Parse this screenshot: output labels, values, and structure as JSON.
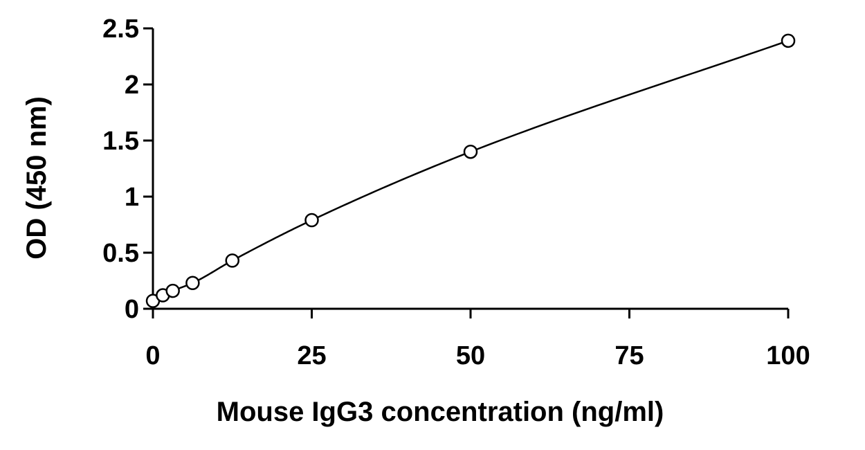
{
  "chart_data": {
    "type": "scatter",
    "title": "",
    "xlabel": "Mouse IgG3 concentration (ng/ml)",
    "ylabel": "OD (450 nm)",
    "xlim": [
      0,
      100
    ],
    "ylim": [
      0,
      2.5
    ],
    "x_ticks": [
      0,
      25,
      50,
      75,
      100
    ],
    "x_tick_labels": [
      "0",
      "25",
      "50",
      "75",
      "100"
    ],
    "y_ticks": [
      0,
      0.5,
      1,
      1.5,
      2,
      2.5
    ],
    "y_tick_labels": [
      "0",
      "0.5",
      "1",
      "1.5",
      "2",
      "2.5"
    ],
    "grid": false,
    "legend": "none",
    "fit_curve": true,
    "series": [
      {
        "x": [
          0,
          1.56,
          3.125,
          6.25,
          12.5,
          25,
          50,
          100
        ],
        "y": [
          0.07,
          0.12,
          0.16,
          0.23,
          0.43,
          0.79,
          1.4,
          2.39
        ]
      }
    ]
  }
}
